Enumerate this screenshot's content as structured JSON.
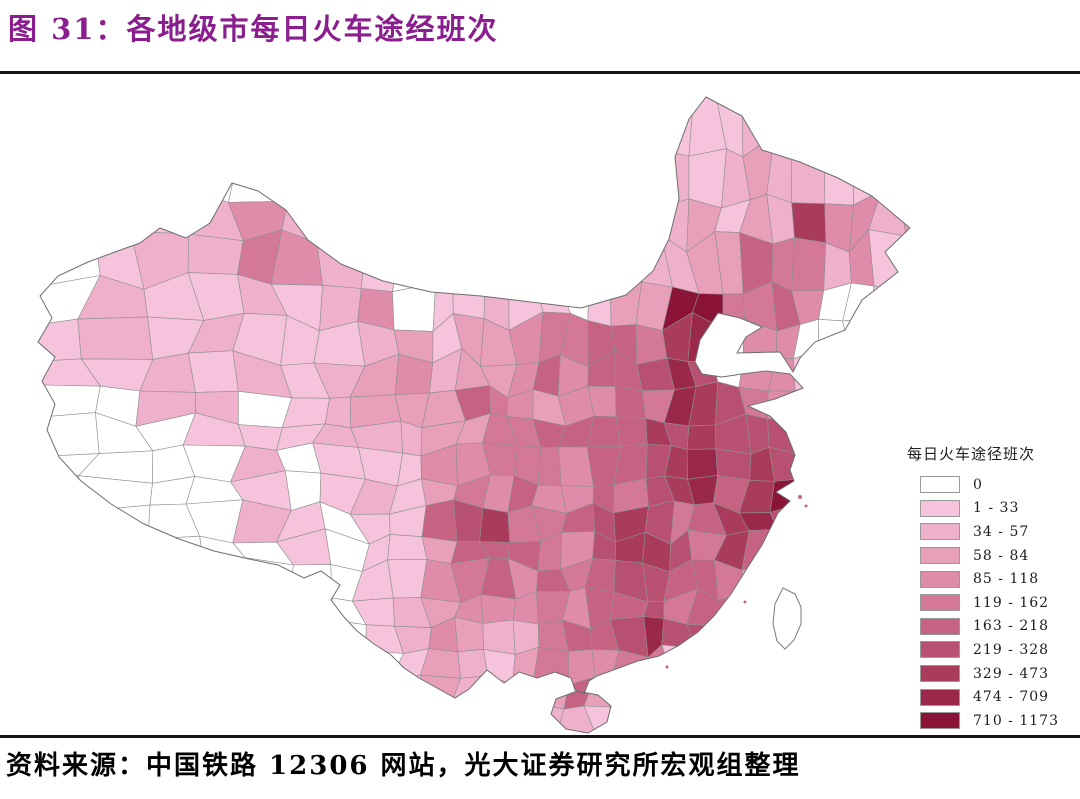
{
  "header": {
    "title": "图 31：各地级市每日火车途经班次"
  },
  "footer": {
    "source": "资料来源：中国铁路 12306 网站，光大证券研究所宏观组整理"
  },
  "chart_data": {
    "type": "heatmap",
    "subtype": "choropleth-map",
    "title": "各地级市每日火车途经班次",
    "region": "中国地级市",
    "unit": "班次/日",
    "value_range": [
      0,
      1173
    ],
    "legend_position": "right",
    "legend_title": "每日火车途径班次",
    "legend": [
      {
        "label": "0",
        "color": "#FFFFFF"
      },
      {
        "label": "1 - 33",
        "color": "#F5C3DB"
      },
      {
        "label": "34 - 57",
        "color": "#EFB0CC"
      },
      {
        "label": "58 - 84",
        "color": "#E79FBA"
      },
      {
        "label": "85 - 118",
        "color": "#DE8CAA"
      },
      {
        "label": "119 - 162",
        "color": "#D37897"
      },
      {
        "label": "163 - 218",
        "color": "#C66383"
      },
      {
        "label": "219 - 328",
        "color": "#B85171"
      },
      {
        "label": "329 - 473",
        "color": "#A93C5C"
      },
      {
        "label": "474 - 709",
        "color": "#9A284B"
      },
      {
        "label": "710 - 1173",
        "color": "#8B1338"
      }
    ],
    "spatial_pattern": "west (Tibet/Qinghai/west Sichuan) mostly 0; Xinjiang light; Inner Mongolia light with gaps; dense dark band through Beijing-Zhengzhou-Wuhan-Yangtze delta-Pearl delta; Beijing, Shanghai, Guangzhou in top bin; Taiwan no data; Hainan light",
    "density_grid": [
      [
        0,
        0,
        0,
        0,
        0,
        0,
        0,
        0,
        0,
        0,
        0,
        0,
        0,
        0,
        0,
        0,
        1,
        2,
        2,
        0,
        0,
        0
      ],
      [
        0,
        0,
        0,
        0,
        0,
        0,
        0,
        0,
        0,
        0,
        0,
        0,
        0,
        0,
        0,
        1,
        2,
        2,
        3,
        2,
        1,
        0
      ],
      [
        0,
        0,
        0,
        0,
        1,
        2,
        2,
        0,
        0,
        0,
        0,
        0,
        0,
        0,
        0,
        0,
        2,
        2,
        0,
        6,
        3,
        2
      ],
      [
        0,
        0,
        0,
        1,
        2,
        3,
        2,
        1,
        0,
        0,
        0,
        0,
        0,
        0,
        0,
        0,
        2,
        1,
        3,
        7,
        4,
        2
      ],
      [
        0,
        0,
        1,
        2,
        2,
        4,
        3,
        2,
        0,
        0,
        0,
        0,
        0,
        0,
        0,
        1,
        2,
        3,
        6,
        5,
        3,
        1
      ],
      [
        0,
        1,
        1,
        1,
        2,
        2,
        2,
        2,
        3,
        0,
        1,
        2,
        1,
        0,
        2,
        3,
        10,
        5,
        6,
        4,
        0,
        0
      ],
      [
        1,
        1,
        1,
        1,
        1,
        2,
        1,
        1,
        2,
        3,
        2,
        3,
        4,
        5,
        6,
        7,
        8,
        0,
        4,
        0,
        0,
        0
      ],
      [
        0,
        1,
        0,
        1,
        1,
        0,
        1,
        2,
        3,
        2,
        3,
        4,
        5,
        4,
        6,
        5,
        8,
        7,
        5,
        4,
        0,
        0
      ],
      [
        0,
        0,
        0,
        0,
        1,
        1,
        1,
        1,
        3,
        2,
        5,
        4,
        6,
        7,
        6,
        8,
        7,
        6,
        7,
        4,
        0,
        0
      ],
      [
        0,
        0,
        0,
        0,
        0,
        1,
        0,
        1,
        2,
        1,
        3,
        5,
        6,
        5,
        6,
        7,
        8,
        7,
        8,
        10,
        0,
        0
      ],
      [
        0,
        0,
        0,
        0,
        0,
        1,
        1,
        0,
        0,
        1,
        6,
        7,
        5,
        6,
        7,
        8,
        6,
        7,
        8,
        5,
        0,
        0
      ],
      [
        0,
        0,
        0,
        0,
        0,
        0,
        1,
        0,
        1,
        2,
        4,
        6,
        6,
        5,
        7,
        7,
        6,
        7,
        6,
        0,
        0,
        0
      ],
      [
        0,
        0,
        0,
        0,
        0,
        0,
        0,
        0,
        1,
        2,
        3,
        4,
        5,
        5,
        6,
        7,
        6,
        6,
        3,
        0,
        0,
        0
      ],
      [
        0,
        0,
        0,
        0,
        0,
        0,
        0,
        0,
        0,
        2,
        3,
        3,
        4,
        5,
        6,
        9,
        7,
        5,
        0,
        0,
        0,
        0
      ],
      [
        0,
        0,
        0,
        0,
        0,
        0,
        0,
        0,
        0,
        1,
        2,
        2,
        3,
        4,
        4,
        5,
        0,
        0,
        0,
        0,
        0,
        0
      ],
      [
        0,
        0,
        0,
        0,
        0,
        0,
        0,
        0,
        0,
        0,
        0,
        0,
        0,
        2,
        1,
        0,
        0,
        0,
        0,
        0,
        0,
        0
      ]
    ]
  }
}
